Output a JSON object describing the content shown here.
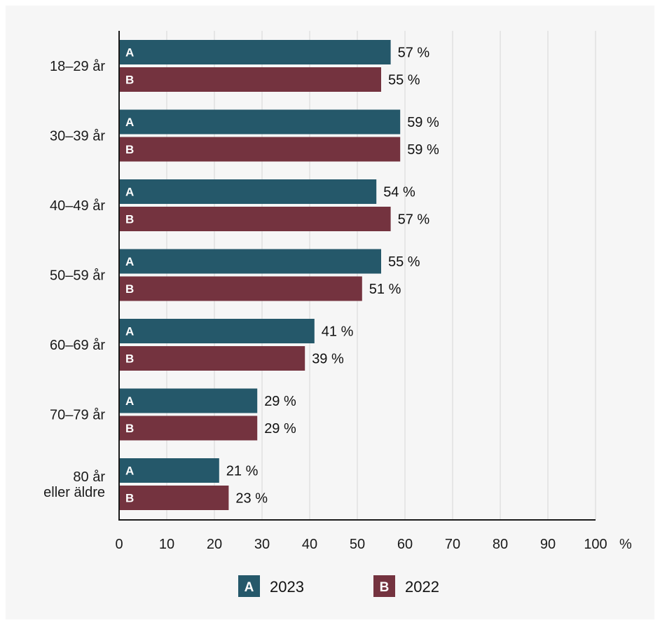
{
  "chart_data": {
    "type": "bar",
    "orientation": "horizontal",
    "categories": [
      "18–29 år",
      "30–39 år",
      "40–49 år",
      "50–59 år",
      "60–69 år",
      "70–79 år",
      "80 år\neller äldre"
    ],
    "series": [
      {
        "name": "2023",
        "letter": "A",
        "color": "#25586a",
        "values": [
          57,
          59,
          54,
          55,
          41,
          29,
          21
        ]
      },
      {
        "name": "2022",
        "letter": "B",
        "color": "#74333f",
        "values": [
          55,
          59,
          57,
          51,
          39,
          29,
          23
        ]
      }
    ],
    "value_suffix": " %",
    "x_ticks": [
      0,
      10,
      20,
      30,
      40,
      50,
      60,
      70,
      80,
      90,
      100
    ],
    "xlim": [
      0,
      100
    ],
    "x_unit": "%",
    "grid": "vertical",
    "legend_position": "bottom-center"
  }
}
